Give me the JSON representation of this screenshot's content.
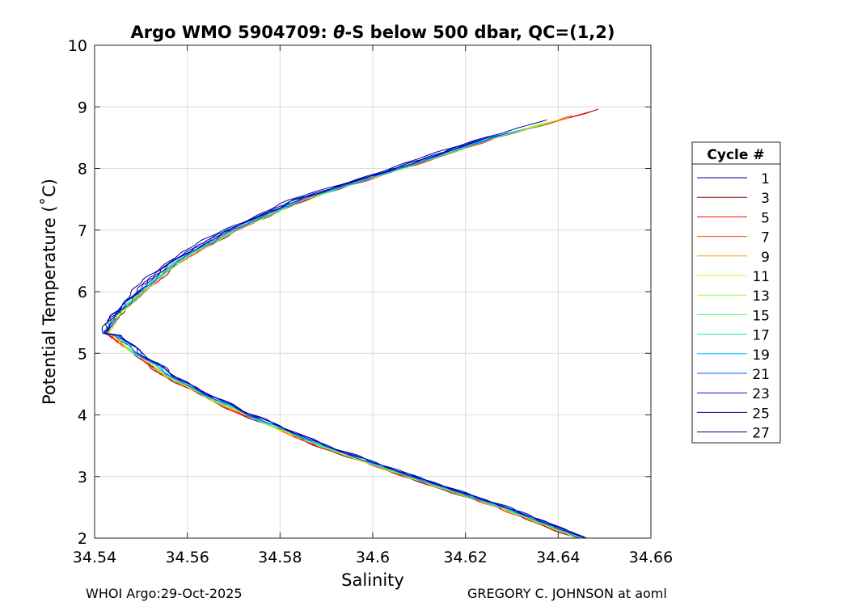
{
  "chart_data": {
    "type": "line",
    "title_prefix": "Argo WMO 5904709: ",
    "title_theta": "θ",
    "title_suffix": "-S below 500 dbar,  QC=(1,2)",
    "xlabel": "Salinity",
    "ylabel": "Potential Temperature (˚C)",
    "xlim": [
      34.54,
      34.66
    ],
    "ylim": [
      2,
      10
    ],
    "xticks": [
      34.54,
      34.56,
      34.58,
      34.6,
      34.62,
      34.64,
      34.66
    ],
    "xtick_labels": [
      "34.54",
      "34.56",
      "34.58",
      "34.6",
      "34.62",
      "34.64",
      "34.66"
    ],
    "yticks": [
      2,
      3,
      4,
      5,
      6,
      7,
      8,
      9,
      10
    ],
    "ytick_labels": [
      "2",
      "3",
      "4",
      "5",
      "6",
      "7",
      "8",
      "9",
      "10"
    ],
    "grid": true,
    "legend_title": "Cycle #",
    "legend_position": "right-outside",
    "series": [
      {
        "name": "1",
        "color": "#00008f"
      },
      {
        "name": "3",
        "color": "#8f0000"
      },
      {
        "name": "5",
        "color": "#ff0000"
      },
      {
        "name": "7",
        "color": "#ff4a00"
      },
      {
        "name": "9",
        "color": "#ff9a00"
      },
      {
        "name": "11",
        "color": "#e6f000"
      },
      {
        "name": "13",
        "color": "#9cff3c"
      },
      {
        "name": "15",
        "color": "#45ff60"
      },
      {
        "name": "17",
        "color": "#18e6c8"
      },
      {
        "name": "19",
        "color": "#00b8ff"
      },
      {
        "name": "21",
        "color": "#0064ff"
      },
      {
        "name": "23",
        "color": "#0014d6"
      },
      {
        "name": "25",
        "color": "#0000a8"
      },
      {
        "name": "27",
        "color": "#00008f"
      }
    ],
    "profile_shape": {
      "theta": [
        2.0,
        2.5,
        3.0,
        3.5,
        4.0,
        4.5,
        5.0,
        5.3,
        5.6,
        6.0,
        6.5,
        7.0,
        7.5,
        8.0,
        8.5,
        9.0
      ],
      "salinity": [
        34.643,
        34.626,
        34.606,
        34.587,
        34.571,
        34.557,
        34.547,
        34.5425,
        34.545,
        34.551,
        34.559,
        34.571,
        34.586,
        34.607,
        34.627,
        34.651
      ]
    }
  },
  "footer": {
    "left": "WHOI Argo:29-Oct-2025",
    "right": "GREGORY C. JOHNSON at aoml"
  }
}
